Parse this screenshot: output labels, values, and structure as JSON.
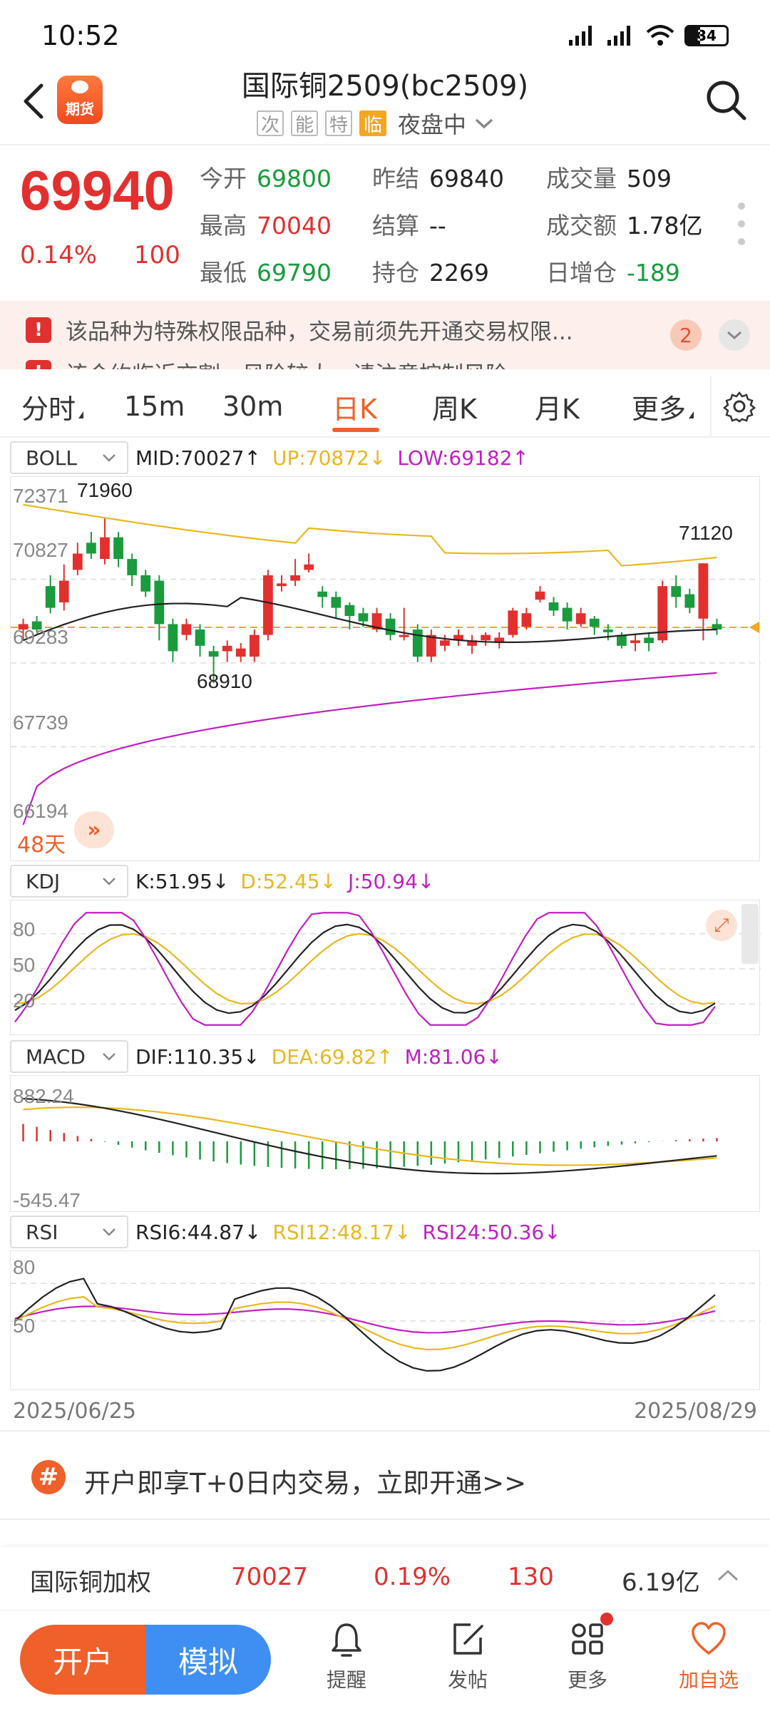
{
  "status_bar": {
    "time": "10:52",
    "battery": "34"
  },
  "header": {
    "title": "国际铜2509(bc2509)",
    "tags": [
      "次",
      "能",
      "特",
      "临"
    ],
    "session": "夜盘中"
  },
  "quote": {
    "last_price": "69940",
    "change_pct": "0.14%",
    "change_abs": "100",
    "fields": {
      "open_label": "今开",
      "open": "69800",
      "high_label": "最高",
      "high": "70040",
      "low_label": "最低",
      "low": "69790",
      "prev_settle_label": "昨结",
      "prev_settle": "69840",
      "settle_label": "结算",
      "settle": "--",
      "oi_label": "持仓",
      "oi": "2269",
      "volume_label": "成交量",
      "volume": "509",
      "turnover_label": "成交额",
      "turnover": "1.78亿",
      "oi_change_label": "日增仓",
      "oi_change": "-189"
    }
  },
  "notices": {
    "line1": "该品种为特殊权限品种，交易前须先开通交易权限...",
    "line2": "该合约临近交割，风险较大，请注意控制风险。",
    "count": "2"
  },
  "period_tabs": {
    "fen": "分时",
    "m15": "15m",
    "m30": "30m",
    "day": "日K",
    "week": "周K",
    "month": "月K",
    "more": "更多"
  },
  "boll": {
    "indicator": "BOLL",
    "mid": "MID:70027↑",
    "up": "UP:70872↓",
    "low": "LOW:69182↑",
    "y_labels": [
      "72371",
      "70827",
      "69283",
      "67739",
      "66194"
    ],
    "annot_high": "71960",
    "annot_low": "68910",
    "annot_recent": "71120",
    "days": "48天"
  },
  "kdj": {
    "indicator": "KDJ",
    "k": "K:51.95↓",
    "d": "D:52.45↓",
    "j": "J:50.94↓",
    "y_labels": [
      "80",
      "50",
      "20"
    ]
  },
  "macd": {
    "indicator": "MACD",
    "dif": "DIF:110.35↓",
    "dea": "DEA:69.82↑",
    "m": "M:81.06↓",
    "y_labels": [
      "882.24",
      "-545.47"
    ]
  },
  "rsi": {
    "indicator": "RSI",
    "rsi6": "RSI6:44.87↓",
    "rsi12": "RSI12:48.17↓",
    "rsi24": "RSI24:50.36↓",
    "y_labels": [
      "80",
      "50"
    ]
  },
  "dates": {
    "start": "2025/06/25",
    "end": "2025/08/29"
  },
  "promo": {
    "icon": "#",
    "text": "开户即享T+0日内交易，立即开通>>"
  },
  "weighted": {
    "name": "国际铜加权",
    "price": "70027",
    "pct": "0.19%",
    "chg": "130",
    "turnover": "6.19亿"
  },
  "bottom_nav": {
    "open_account": "开户",
    "simulate": "模拟",
    "remind": "提醒",
    "post": "发帖",
    "more": "更多",
    "add_fav": "加自选"
  },
  "colors": {
    "up": "#e2302f",
    "down": "#1a9b3d",
    "accent": "#f0602a",
    "boll_up": "#e8b820",
    "boll_low": "#c020c0",
    "mid": "#222222"
  },
  "chart_data": {
    "type": "candlestick",
    "x_range": [
      "2025/06/25",
      "2025/08/29"
    ],
    "ylim": [
      66194,
      72371
    ],
    "annotations": {
      "high": 71960,
      "low": 68910,
      "recent_high": 71120
    },
    "reference_price": 69940,
    "indicators": {
      "BOLL": {
        "MID": 70027,
        "UP": 70872,
        "LOW": 69182
      },
      "KDJ": {
        "K": 51.95,
        "D": 52.45,
        "J": 50.94
      },
      "MACD": {
        "DIF": 110.35,
        "DEA": 69.82,
        "M": 81.06
      },
      "RSI": {
        "RSI6": 44.87,
        "RSI12": 48.17,
        "RSI24": 50.36
      }
    }
  }
}
